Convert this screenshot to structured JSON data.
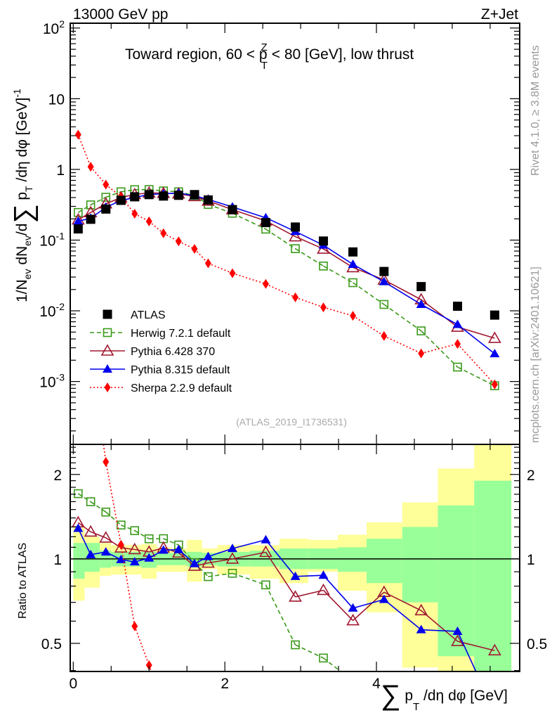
{
  "header": {
    "left": "13000 GeV pp",
    "right": "Z+Jet"
  },
  "side_labels": {
    "rivet": "Rivet 4.1.0, ≥ 3.8M events",
    "mcplots": "mcplots.cern.ch [arXiv:2401.10621]"
  },
  "analysis_id": "(ATLAS_2019_I1736531)",
  "colors": {
    "atlas": "#000000",
    "herwig": "#3a9a1a",
    "pythia6": "#a01830",
    "pythia8": "#0000ee",
    "sherpa": "#ff0000",
    "band_inner": "#99ff99",
    "band_outer": "#ffff99"
  },
  "chart_data": [
    {
      "type": "line",
      "title": "Toward region, 60 < p_T^Z < 80 [GeV], low thrust",
      "title_parts": {
        "pre": "Toward region, 60 < p",
        "sup": "Z",
        "sub": "T",
        "post": " < 80 [GeV], low thrust"
      },
      "ylabel": "1/N_ev dN_ev/d∑ p_T /dη dφ [GeV]^-1",
      "ylabel_parts": {
        "a": "1/N",
        "a_sub": "ev",
        "b": " dN",
        "b_sub": "ev",
        "c": "/d",
        "sigma": "∑",
        "d": " p",
        "d_sub": "T",
        "e": " /dη dφ  [GeV]",
        "e_sup": "-1"
      },
      "yscale": "log",
      "ylim": [
        0.000129,
        117
      ],
      "xlim": [
        -0.04,
        5.89
      ],
      "yticks": [
        {
          "exp": "-3"
        },
        {
          "exp": "-2"
        },
        {
          "exp": "-1"
        },
        {
          "val": "1"
        },
        {
          "val": "10"
        },
        {
          "exp": "2"
        }
      ],
      "legend_position": "bottom-left",
      "x": [
        0.065,
        0.23,
        0.43,
        0.63,
        0.81,
        1.0,
        1.19,
        1.39,
        1.6,
        1.78,
        2.1,
        2.54,
        2.93,
        3.3,
        3.69,
        4.1,
        4.59,
        5.07,
        5.56
      ],
      "series": [
        {
          "name": "ATLAS",
          "key": "atlas",
          "marker": "square",
          "line": "none",
          "values": [
            0.144,
            0.197,
            0.275,
            0.365,
            0.41,
            0.44,
            0.42,
            0.43,
            0.44,
            0.37,
            0.27,
            0.177,
            0.153,
            0.097,
            0.068,
            0.036,
            0.022,
            0.0116,
            0.0087
          ]
        },
        {
          "name": "Herwig 7.2.1 default",
          "key": "herwig",
          "marker": "open-square",
          "line": "dashed",
          "values": [
            0.246,
            0.315,
            0.404,
            0.482,
            0.517,
            0.519,
            0.496,
            0.482,
            0.427,
            0.32,
            0.24,
            0.143,
            0.0756,
            0.043,
            0.025,
            0.0123,
            0.0052,
            0.0016,
            0.00087
          ]
        },
        {
          "name": "Pythia 6.428 370",
          "key": "pythia6",
          "marker": "open-triangle",
          "line": "solid",
          "values": [
            0.194,
            0.246,
            0.327,
            0.4,
            0.443,
            0.466,
            0.46,
            0.452,
            0.415,
            0.358,
            0.27,
            0.187,
            0.112,
            0.075,
            0.041,
            0.0274,
            0.0144,
            0.0059,
            0.0041
          ]
        },
        {
          "name": "Pythia 8.315 default",
          "key": "pythia8",
          "marker": "triangle",
          "line": "solid",
          "values": [
            0.185,
            0.204,
            0.291,
            0.363,
            0.4,
            0.443,
            0.451,
            0.464,
            0.423,
            0.377,
            0.294,
            0.207,
            0.1325,
            0.0848,
            0.0454,
            0.0258,
            0.0123,
            0.0064,
            0.00247
          ]
        },
        {
          "name": "Sherpa 2.2.9 default",
          "key": "sherpa",
          "marker": "diamond",
          "line": "dotted",
          "values": [
            3.1,
            1.09,
            0.61,
            0.41,
            0.236,
            0.184,
            0.125,
            0.096,
            0.075,
            0.047,
            0.034,
            0.024,
            0.0155,
            0.0112,
            0.0085,
            0.0044,
            0.0025,
            0.0034,
            0.00091
          ]
        }
      ]
    },
    {
      "type": "line",
      "ylabel": "Ratio to ATLAS",
      "yscale": "log",
      "ylim": [
        0.397,
        2.56
      ],
      "xlim": [
        -0.04,
        5.89
      ],
      "yticks": [
        "0.5",
        "1",
        "2"
      ],
      "xticks": [
        "0",
        "2",
        "4"
      ],
      "xlabel_parts": {
        "sigma": "∑",
        "a": " p",
        "a_sub": "T",
        "b": " /dη dφ [GeV]"
      },
      "xlabel": "∑ p_T /dη dφ [GeV]",
      "bin_edges": [
        0,
        0.15,
        0.35,
        0.5,
        0.7,
        0.9,
        1.1,
        1.3,
        1.5,
        1.7,
        1.9,
        2.33,
        2.72,
        3.1,
        3.49,
        3.87,
        4.34,
        4.81,
        5.29,
        5.78
      ],
      "band_outer": [
        [
          0.71,
          1.3
        ],
        [
          0.79,
          1.2
        ],
        [
          0.87,
          1.14
        ],
        [
          0.88,
          1.12
        ],
        [
          0.88,
          1.12
        ],
        [
          0.85,
          1.13
        ],
        [
          0.9,
          1.1
        ],
        [
          0.9,
          1.09
        ],
        [
          0.83,
          1.17
        ],
        [
          0.92,
          1.09
        ],
        [
          0.88,
          1.12
        ],
        [
          0.85,
          1.12
        ],
        [
          0.82,
          1.18
        ],
        [
          0.9,
          1.17
        ],
        [
          0.77,
          1.22
        ],
        [
          0.645,
          1.35
        ],
        [
          0.41,
          1.59
        ],
        [
          0.3,
          2.1
        ],
        [
          0.3,
          2.7
        ]
      ],
      "band_inner": [
        [
          0.85,
          1.14
        ],
        [
          0.9,
          1.14
        ],
        [
          0.93,
          1.07
        ],
        [
          0.94,
          1.06
        ],
        [
          0.94,
          1.06
        ],
        [
          0.93,
          1.06
        ],
        [
          0.95,
          1.05
        ],
        [
          0.95,
          1.05
        ],
        [
          0.94,
          1.06
        ],
        [
          0.95,
          1.05
        ],
        [
          0.94,
          1.06
        ],
        [
          0.94,
          1.07
        ],
        [
          0.92,
          1.09
        ],
        [
          0.92,
          1.09
        ],
        [
          0.9,
          1.1
        ],
        [
          0.82,
          1.18
        ],
        [
          0.7,
          1.3
        ],
        [
          0.45,
          1.55
        ],
        [
          0.3,
          1.9
        ]
      ]
    }
  ]
}
